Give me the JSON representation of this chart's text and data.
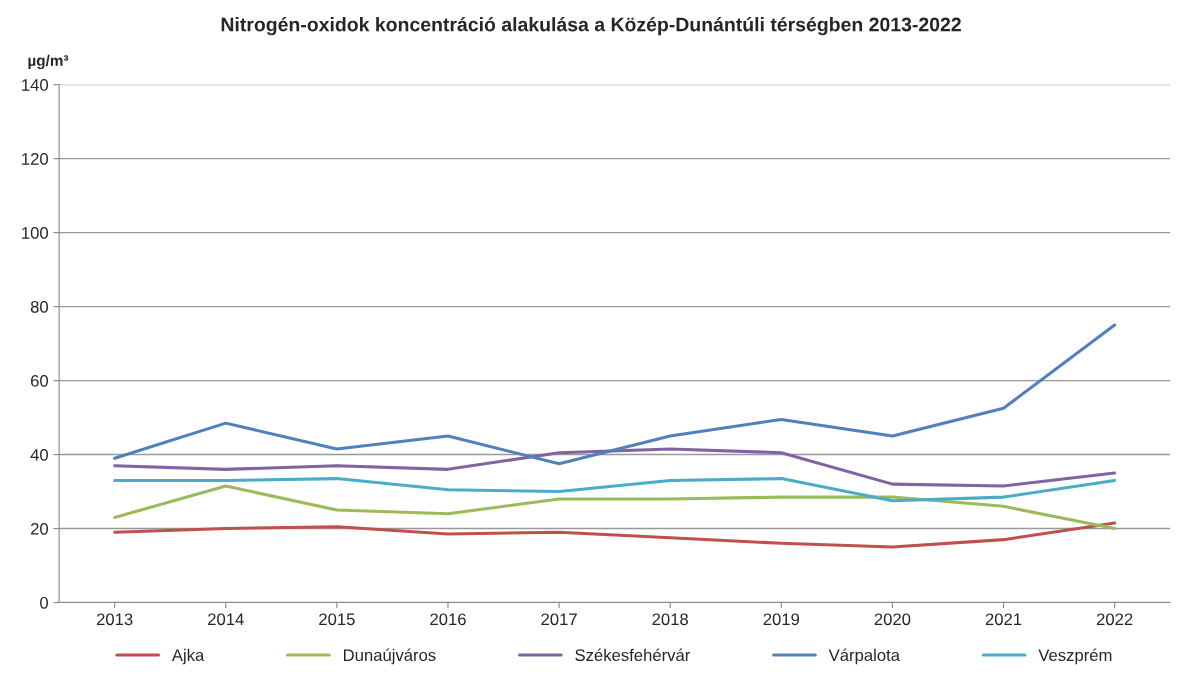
{
  "chart_data": {
    "type": "line",
    "title": "Nitrogén-oxidok koncentráció alakulása a Közép-Dunántúli térségben 2013-2022",
    "ylabel": "µg/m³",
    "categories": [
      "2013",
      "2014",
      "2015",
      "2016",
      "2017",
      "2018",
      "2019",
      "2020",
      "2021",
      "2022"
    ],
    "series": [
      {
        "name": "Ajka",
        "color": "#c0504d",
        "values": [
          19,
          20,
          20.5,
          18.5,
          19,
          17.5,
          16,
          15,
          17,
          21.5
        ]
      },
      {
        "name": "Dunaújváros",
        "color": "#9bbb59",
        "values": [
          23,
          31.5,
          25,
          24,
          28,
          28,
          28.5,
          28.5,
          26,
          20
        ]
      },
      {
        "name": "Székesfehérvár",
        "color": "#8064a2",
        "values": [
          37,
          36,
          37,
          36,
          40.5,
          41.5,
          40.5,
          32,
          31.5,
          35
        ]
      },
      {
        "name": "Várpalota",
        "color": "#4f81bd",
        "values": [
          39,
          48.5,
          41.5,
          45,
          37.5,
          45,
          49.5,
          45,
          52.5,
          75
        ]
      },
      {
        "name": "Veszprém",
        "color": "#4bacc6",
        "values": [
          33,
          33,
          33.5,
          30.5,
          30,
          33,
          33.5,
          27.5,
          28.5,
          33
        ]
      }
    ],
    "ylim": [
      0,
      140
    ],
    "yticks": [
      0,
      20,
      40,
      60,
      80,
      100,
      120,
      140
    ],
    "grid": "y",
    "legend": "bottom",
    "marker": "none",
    "line_style": "solid"
  }
}
